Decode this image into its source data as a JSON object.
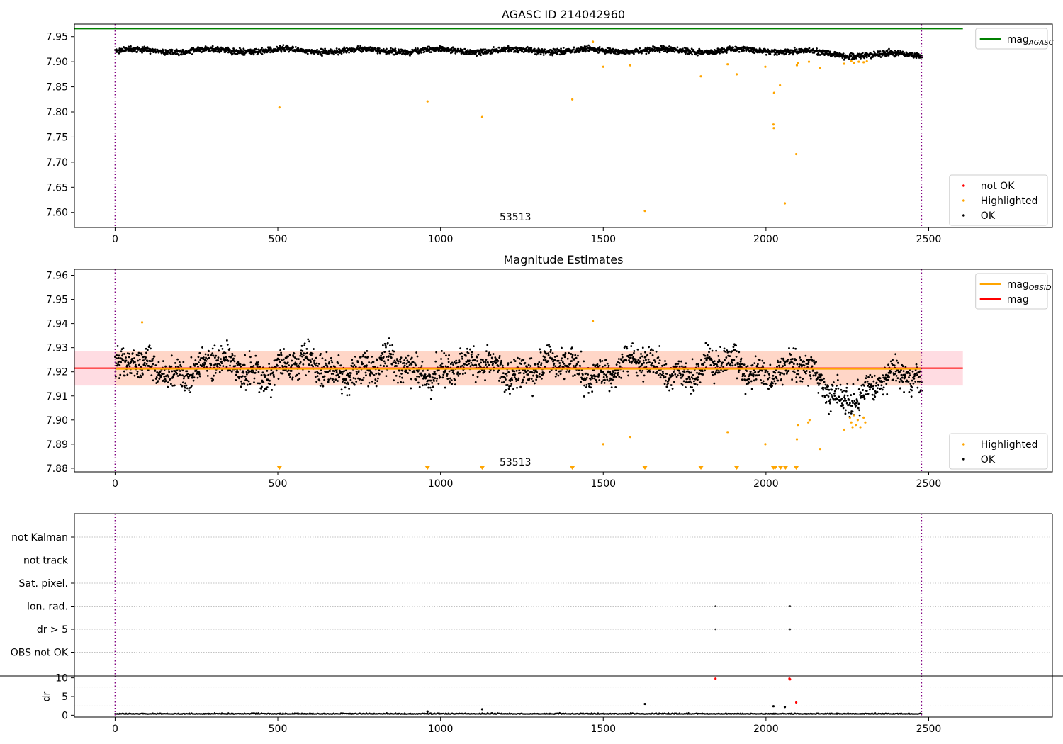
{
  "figure": {
    "title": "AGASC ID 214042960",
    "obsid_label": "53513"
  },
  "colors": {
    "ok": "#000000",
    "highlighted": "#ffa500",
    "not_ok": "#ff0000",
    "mag_agasc": "#008000",
    "mag_obsid": "#ffa500",
    "mag": "#ff0000",
    "obs_boundary": "#800080",
    "band_mag": "#ffc0cb",
    "band_obsid": "#ffd2b0"
  },
  "chart_data": [
    {
      "id": "agasc-panel",
      "type": "scatter",
      "title": "",
      "xlim": [
        -125,
        2880
      ],
      "ylim": [
        7.57,
        7.975
      ],
      "xticks": [
        0,
        500,
        1000,
        1500,
        2000,
        2500
      ],
      "yticks": [
        7.6,
        7.65,
        7.7,
        7.75,
        7.8,
        7.85,
        7.9,
        7.95
      ],
      "ytick_labels": [
        "7.60",
        "7.65",
        "7.70",
        "7.75",
        "7.80",
        "7.85",
        "7.90",
        "7.95"
      ],
      "n_points": 2480,
      "ok_band": {
        "center": 7.922,
        "spread": 0.008,
        "late_dip_start": 2080,
        "late_dip_depth": 0.008
      },
      "highlighted_points": [
        {
          "x": 505,
          "y": 7.809
        },
        {
          "x": 960,
          "y": 7.821
        },
        {
          "x": 1128,
          "y": 7.79
        },
        {
          "x": 1405,
          "y": 7.825
        },
        {
          "x": 1468,
          "y": 7.94
        },
        {
          "x": 1500,
          "y": 7.89
        },
        {
          "x": 1583,
          "y": 7.893
        },
        {
          "x": 1628,
          "y": 7.603
        },
        {
          "x": 1800,
          "y": 7.871
        },
        {
          "x": 1882,
          "y": 7.895
        },
        {
          "x": 1910,
          "y": 7.875
        },
        {
          "x": 1998,
          "y": 7.89
        },
        {
          "x": 2023,
          "y": 7.775
        },
        {
          "x": 2024,
          "y": 7.768
        },
        {
          "x": 2025,
          "y": 7.838
        },
        {
          "x": 2043,
          "y": 7.853
        },
        {
          "x": 2058,
          "y": 7.618
        },
        {
          "x": 2093,
          "y": 7.716
        },
        {
          "x": 2095,
          "y": 7.893
        },
        {
          "x": 2098,
          "y": 7.898
        },
        {
          "x": 2132,
          "y": 7.9
        },
        {
          "x": 2166,
          "y": 7.888
        },
        {
          "x": 2240,
          "y": 7.896
        },
        {
          "x": 2262,
          "y": 7.901
        },
        {
          "x": 2270,
          "y": 7.898
        },
        {
          "x": 2285,
          "y": 7.9
        },
        {
          "x": 2300,
          "y": 7.899
        },
        {
          "x": 2310,
          "y": 7.901
        }
      ],
      "lines": [
        {
          "name": "mag",
          "sub": "AGASC",
          "y": 7.966,
          "x_range": [
            -125,
            2605
          ]
        }
      ],
      "vlines": [
        0,
        2478
      ],
      "legend_upper": [
        {
          "label": "mag",
          "sub": "AGASC",
          "kind": "line"
        }
      ],
      "legend_lower": [
        {
          "label": "not OK",
          "kind": "dot",
          "series": "not_ok"
        },
        {
          "label": "Highlighted",
          "kind": "dot",
          "series": "highlighted"
        },
        {
          "label": "OK",
          "kind": "dot",
          "series": "ok"
        }
      ]
    },
    {
      "id": "magnitude-panel",
      "type": "scatter",
      "title": "Magnitude Estimates",
      "xlim": [
        -125,
        2880
      ],
      "ylim": [
        7.8785,
        7.9625
      ],
      "xticks": [
        0,
        500,
        1000,
        1500,
        2000,
        2500
      ],
      "yticks": [
        7.88,
        7.89,
        7.9,
        7.91,
        7.92,
        7.93,
        7.94,
        7.95,
        7.96
      ],
      "ytick_labels": [
        "7.88",
        "7.89",
        "7.90",
        "7.91",
        "7.92",
        "7.93",
        "7.94",
        "7.95",
        "7.96"
      ],
      "mag": 7.9215,
      "mag_obsid": 7.9212,
      "band": [
        7.9143,
        7.9287
      ],
      "band_x_range": [
        -125,
        2605
      ],
      "highlighted_points": [
        {
          "x": 83,
          "y": 7.9405
        },
        {
          "x": 1468,
          "y": 7.941
        },
        {
          "x": 1500,
          "y": 7.89
        },
        {
          "x": 1583,
          "y": 7.893
        },
        {
          "x": 1882,
          "y": 7.895
        },
        {
          "x": 1998,
          "y": 7.89
        },
        {
          "x": 2095,
          "y": 7.892
        },
        {
          "x": 2098,
          "y": 7.898
        },
        {
          "x": 2130,
          "y": 7.899
        },
        {
          "x": 2134,
          "y": 7.9
        },
        {
          "x": 2166,
          "y": 7.888
        },
        {
          "x": 2240,
          "y": 7.896
        },
        {
          "x": 2258,
          "y": 7.901
        },
        {
          "x": 2262,
          "y": 7.899
        },
        {
          "x": 2266,
          "y": 7.897
        },
        {
          "x": 2270,
          "y": 7.902
        },
        {
          "x": 2276,
          "y": 7.898
        },
        {
          "x": 2282,
          "y": 7.9
        },
        {
          "x": 2290,
          "y": 7.897
        },
        {
          "x": 2300,
          "y": 7.901
        },
        {
          "x": 2305,
          "y": 7.899
        }
      ],
      "lower_limit_markers": [
        505,
        960,
        1128,
        1405,
        1628,
        1800,
        1910,
        2023,
        2028,
        2045,
        2060,
        2093
      ],
      "vlines": [
        0,
        2478
      ],
      "legend_upper": [
        {
          "label": "mag",
          "sub": "OBSID",
          "kind": "line",
          "series": "mag_obsid"
        },
        {
          "label": "mag",
          "sub": "",
          "kind": "line",
          "series": "mag"
        }
      ],
      "legend_lower": [
        {
          "label": "Highlighted",
          "kind": "dot",
          "series": "highlighted"
        },
        {
          "label": "OK",
          "kind": "dot",
          "series": "ok"
        }
      ]
    },
    {
      "id": "flags-panel",
      "type": "scatter",
      "title": "",
      "xlim": [
        -125,
        2880
      ],
      "categories": [
        "not Kalman",
        "not track",
        "Sat. pixel.",
        "Ion. rad.",
        "dr > 5",
        "OBS not OK"
      ],
      "flag_points": [
        {
          "category": "Ion. rad.",
          "x": 1845
        },
        {
          "category": "Ion. rad.",
          "x": 2072
        },
        {
          "category": "Ion. rad.",
          "x": 2074
        },
        {
          "category": "dr > 5",
          "x": 1845
        },
        {
          "category": "dr > 5",
          "x": 2072
        },
        {
          "category": "dr > 5",
          "x": 2074
        }
      ],
      "vlines": [
        0,
        2478
      ]
    },
    {
      "id": "dr-panel",
      "type": "scatter",
      "title": "",
      "ylabel": "dr",
      "xlim": [
        -125,
        2880
      ],
      "ylim": [
        -0.5,
        10.5
      ],
      "xticks": [
        0,
        500,
        1000,
        1500,
        2000,
        2500
      ],
      "yticks": [
        0,
        5,
        10
      ],
      "ytick_labels": [
        "0",
        "5",
        "10"
      ],
      "baseline": 0.3,
      "spike_points": [
        {
          "x": 960,
          "y": 1.0,
          "series": "ok"
        },
        {
          "x": 1128,
          "y": 1.6,
          "series": "ok"
        },
        {
          "x": 1628,
          "y": 3.0,
          "series": "ok"
        },
        {
          "x": 2023,
          "y": 2.4,
          "series": "ok"
        },
        {
          "x": 2058,
          "y": 2.2,
          "series": "ok"
        },
        {
          "x": 2093,
          "y": 3.4,
          "series": "not_ok"
        },
        {
          "x": 1845,
          "y": 9.8,
          "series": "not_ok"
        },
        {
          "x": 2072,
          "y": 9.8,
          "series": "not_ok"
        },
        {
          "x": 2074,
          "y": 9.6,
          "series": "not_ok"
        }
      ],
      "vlines": [
        0,
        2478
      ]
    }
  ]
}
